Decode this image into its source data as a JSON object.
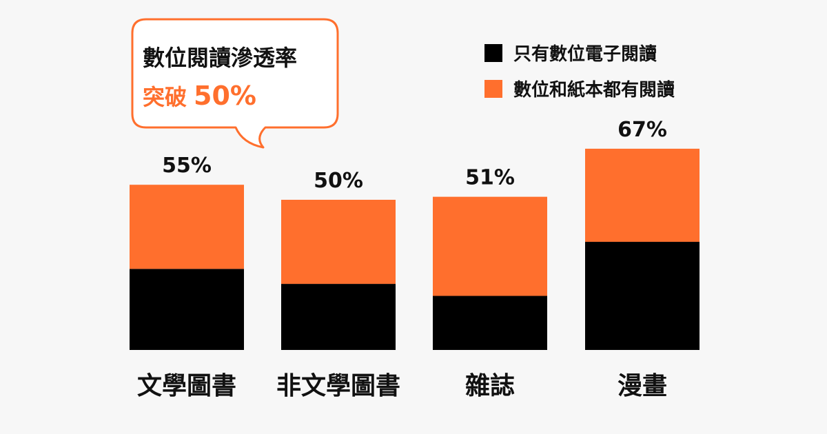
{
  "callout": {
    "line1": "數位閱讀滲透率",
    "line2_prefix": "突破",
    "line2_value": "50%"
  },
  "colors": {
    "background": "#f7f7f7",
    "digital_only": "#000000",
    "digital_and_print": "#ff6f2d",
    "text": "#111111"
  },
  "chart_data": {
    "type": "bar",
    "stacked": true,
    "categories": [
      "文學圖書",
      "非文學圖書",
      "雜誌",
      "漫畫"
    ],
    "totals": [
      55,
      50,
      51,
      67
    ],
    "total_labels": [
      "55%",
      "50%",
      "51%",
      "67%"
    ],
    "series": [
      {
        "name": "只有數位電子閱讀",
        "color": "#000000",
        "values": [
          27,
          22,
          18,
          36
        ]
      },
      {
        "name": "數位和紙本都有閱讀",
        "color": "#ff6f2d",
        "values": [
          28,
          28,
          33,
          31
        ]
      }
    ],
    "legend_position": "top-right",
    "grid": false,
    "ylim": [
      0,
      100
    ]
  }
}
